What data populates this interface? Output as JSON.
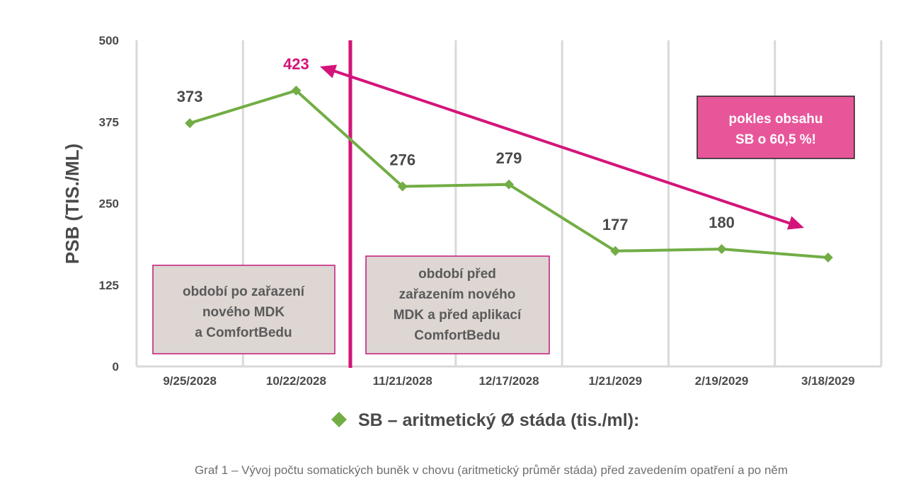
{
  "chart_data": {
    "type": "line",
    "ylabel": "PSB (TIS./ML)",
    "ylim": [
      0,
      500
    ],
    "y_ticks": [
      "0",
      "125",
      "250",
      "375",
      "500"
    ],
    "categories": [
      "9/25/2028",
      "10/22/2028",
      "11/21/2028",
      "12/17/2028",
      "1/21/2029",
      "2/19/2029",
      "3/18/2029"
    ],
    "series": [
      {
        "name": "SB – aritmetický Ø stáda (tis./ml):",
        "values": [
          373,
          423,
          276,
          279,
          177,
          180,
          167
        ],
        "color": "#72ad45",
        "data_labels": [
          "373",
          "423",
          "276",
          "279",
          "177",
          "180",
          ""
        ]
      }
    ],
    "highlight_label_color": "#d4147a",
    "grid": true,
    "legend_position": "bottom",
    "annotations": {
      "box_after": [
        "období po zařazení",
        "nového MDK",
        "a ComfortBedu"
      ],
      "box_before": [
        "období před",
        "zařazením nového",
        "MDK a před aplikací",
        "ComfortBedu"
      ],
      "callout": [
        "pokles obsahu",
        "SB o 60,5 %!"
      ]
    },
    "caption": "Graf 1 – Vývoj počtu somatických buněk v chovu (aritmetický průměr stáda) před zavedením opatření a po něm"
  },
  "colors": {
    "accent": "#d4147a",
    "callout_bg": "#e8569a",
    "box_bg": "#ddd6d2",
    "box_border": "#c2187a",
    "grid": "#d9d9d9",
    "text": "#4a4a4a"
  }
}
